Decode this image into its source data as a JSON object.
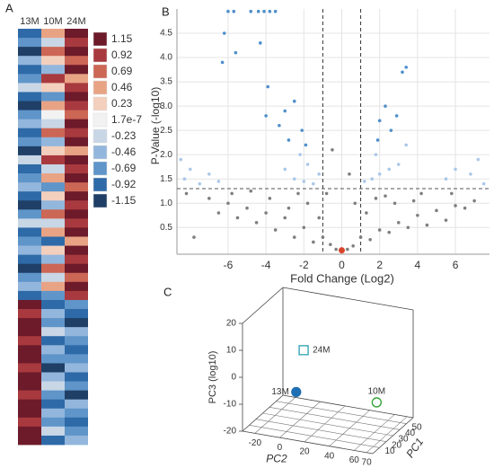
{
  "chart_data": [
    {
      "type": "heatmap",
      "panel": "A",
      "columns": [
        "13M",
        "10M",
        "24M"
      ],
      "legend": [
        {
          "value": 1.15,
          "color": "#6d1a2a"
        },
        {
          "value": 0.92,
          "color": "#a83a3f"
        },
        {
          "value": 0.69,
          "color": "#cc6655"
        },
        {
          "value": 0.46,
          "color": "#e8a385"
        },
        {
          "value": 0.23,
          "color": "#f3cfbd"
        },
        {
          "value": 1.7e-07,
          "color": "#f2f2f2"
        },
        {
          "value": -0.23,
          "color": "#c8d6e6"
        },
        {
          "value": -0.46,
          "color": "#93b6dc"
        },
        {
          "value": -0.69,
          "color": "#5f95c9"
        },
        {
          "value": -0.92,
          "color": "#2e6aa8"
        },
        {
          "value": -1.15,
          "color": "#1f3f66"
        }
      ],
      "rows": [
        [
          -0.92,
          0.46,
          1.15
        ],
        [
          -0.69,
          -0.23,
          0.92
        ],
        [
          -1.15,
          0.69,
          1.15
        ],
        [
          -0.46,
          0.23,
          0.69
        ],
        [
          -0.92,
          -0.46,
          1.15
        ],
        [
          -0.69,
          0.92,
          0.46
        ],
        [
          -0.23,
          0.23,
          0.92
        ],
        [
          -0.92,
          -0.69,
          1.15
        ],
        [
          -1.15,
          0.46,
          0.92
        ],
        [
          -0.69,
          1.7e-07,
          0.69
        ],
        [
          -0.46,
          -0.23,
          1.15
        ],
        [
          -0.92,
          0.69,
          0.92
        ],
        [
          -0.69,
          -0.46,
          1.15
        ],
        [
          -1.15,
          0.23,
          0.46
        ],
        [
          -0.23,
          0.92,
          1.15
        ],
        [
          -0.92,
          -0.23,
          0.92
        ],
        [
          -0.69,
          0.46,
          1.15
        ],
        [
          -0.46,
          -0.69,
          0.69
        ],
        [
          -0.92,
          0.23,
          1.15
        ],
        [
          -1.15,
          -0.46,
          0.92
        ],
        [
          -0.69,
          0.69,
          1.15
        ],
        [
          -0.23,
          -0.23,
          0.92
        ],
        [
          -0.92,
          0.46,
          1.15
        ],
        [
          -0.69,
          -0.92,
          0.46
        ],
        [
          -0.46,
          0.23,
          1.15
        ],
        [
          -0.92,
          -0.46,
          0.92
        ],
        [
          -1.15,
          0.69,
          1.15
        ],
        [
          -0.69,
          -0.23,
          0.69
        ],
        [
          -0.46,
          0.46,
          1.15
        ],
        [
          -0.92,
          -0.69,
          0.92
        ],
        [
          1.15,
          -0.92,
          -0.69
        ],
        [
          0.92,
          -0.46,
          -0.92
        ],
        [
          1.15,
          -0.69,
          -1.15
        ],
        [
          1.15,
          -0.23,
          -0.46
        ],
        [
          0.92,
          -0.92,
          -0.69
        ],
        [
          1.15,
          -0.46,
          -0.92
        ],
        [
          1.15,
          -0.69,
          -0.69
        ],
        [
          0.92,
          -1.15,
          -0.46
        ],
        [
          1.15,
          -0.46,
          -0.92
        ],
        [
          1.15,
          -0.23,
          -0.69
        ],
        [
          0.92,
          -0.69,
          -1.15
        ],
        [
          1.15,
          -0.92,
          -0.46
        ],
        [
          1.15,
          -0.46,
          -0.69
        ],
        [
          0.92,
          -0.69,
          -0.92
        ],
        [
          1.15,
          -0.23,
          -0.69
        ],
        [
          1.15,
          -0.92,
          -0.46
        ]
      ]
    },
    {
      "type": "scatter",
      "panel": "B",
      "xlabel": "Fold Change (Log2)",
      "ylabel": "P-Value (-log10)",
      "xlim": [
        -8.7,
        7.8
      ],
      "ylim": [
        -0.05,
        5.0
      ],
      "xticks": [
        -6,
        -4,
        -2,
        0,
        2,
        4,
        6
      ],
      "yticks": [
        0.5,
        {
          "value": 1,
          "label": "1.0"
        },
        1.5,
        {
          "value": 2,
          "label": "2.0"
        },
        2.5,
        {
          "value": 3,
          "label": "3.0"
        },
        3.5,
        {
          "value": 4,
          "label": "4.0"
        },
        4.5
      ],
      "grid": true,
      "vlines": [
        -1,
        1
      ],
      "hline": 1.3,
      "series": [
        {
          "color": "#7f7f7f",
          "x": [
            -0.3,
            0.3,
            -0.6,
            0.6,
            -1,
            1,
            -1.5,
            1.5,
            -2,
            2,
            -2.5,
            2.5,
            -3,
            3,
            -3.5,
            3.5,
            -4,
            4,
            -4.5,
            4.5,
            -5,
            5,
            -5.5,
            5.5,
            -6,
            6,
            -6.5,
            6.5,
            -7,
            7,
            -1.2,
            1.3,
            -1.8,
            1.8,
            -2.3,
            2.3,
            -7.8,
            -8.2,
            -0.8,
            0.7,
            -0.5,
            0.4,
            -4.8,
            4.2,
            -2.8,
            2.8,
            -3.8,
            3.8,
            -5.8,
            5.8
          ],
          "y": [
            0.05,
            0.05,
            0.15,
            0.12,
            0.3,
            0.3,
            0.2,
            0.25,
            0.5,
            0.45,
            0.3,
            0.4,
            0.7,
            0.6,
            0.45,
            0.5,
            0.8,
            0.75,
            0.6,
            0.55,
            0.9,
            0.85,
            0.7,
            0.65,
            1.0,
            0.95,
            0.8,
            0.9,
            1.1,
            1.05,
            0.7,
            0.8,
            1.0,
            1.1,
            1.2,
            1.15,
            0.3,
            1.2,
            1.2,
            1.0,
            2.1,
            1.6,
            1.25,
            1.2,
            0.9,
            1.0,
            1.1,
            1.05,
            1.2,
            1.2
          ]
        },
        {
          "color": "#a9c8e8",
          "x": [
            -8.5,
            -8.3,
            -8,
            -7.5,
            -7,
            -6.5,
            -2.5,
            -2,
            -1.5,
            -3,
            -1.2,
            1.2,
            1.6,
            2,
            2.5,
            3,
            5.5,
            6,
            6.8,
            7.2,
            7.5,
            -2.2,
            -1.8,
            1.8,
            3.4
          ],
          "y": [
            1.9,
            1.5,
            1.7,
            1.4,
            1.6,
            1.45,
            1.5,
            1.45,
            1.4,
            1.7,
            1.6,
            1.45,
            1.5,
            1.6,
            1.7,
            1.8,
            1.5,
            1.7,
            1.6,
            1.9,
            1.4,
            2.0,
            1.8,
            2.0,
            2.2
          ]
        },
        {
          "color": "#4f8fcc",
          "x": [
            -6,
            -5.7,
            -4.8,
            -4.4,
            -4.1,
            -3.8,
            -3.5,
            -6.2,
            -5.6,
            -6.3,
            -4.3,
            -3.9,
            -3,
            -2.5,
            -2.1,
            -1.9,
            -3.3,
            -2.8,
            -4,
            2,
            2.3,
            2.9,
            3.2,
            3.4,
            1.9,
            2.6
          ],
          "y": [
            4.95,
            4.95,
            4.95,
            4.95,
            4.95,
            4.95,
            4.95,
            4.5,
            4.1,
            3.9,
            4.3,
            3.4,
            2.9,
            3.1,
            2.5,
            2.2,
            2.6,
            2.3,
            2.8,
            2.7,
            3.0,
            2.8,
            3.7,
            3.8,
            2.3,
            2.5
          ]
        },
        {
          "color": "#d9452b",
          "x": [
            0
          ],
          "y": [
            0.03
          ]
        }
      ]
    },
    {
      "type": "scatter3d",
      "panel": "C",
      "xlabel": "PC1",
      "ylabel": "PC2",
      "zlabel": "PC3 (log10)",
      "pc1lim": [
        0,
        60
      ],
      "pc1ticks": [
        10,
        20,
        30,
        40,
        50
      ],
      "pc2lim": [
        -30,
        75
      ],
      "pc2ticks": [
        -20,
        0,
        20,
        40,
        60,
        70
      ],
      "zlim": [
        -20,
        20
      ],
      "zticks": [
        -20,
        -10,
        0,
        10,
        20
      ],
      "points": [
        {
          "name": "13M",
          "pc1": 30,
          "pc2": -3,
          "pc3": -10,
          "color": "#1f6fb4",
          "marker": "circle",
          "filled": true
        },
        {
          "name": "10M",
          "pc1": 50,
          "pc2": 51,
          "pc3": -14,
          "color": "#2ca02c",
          "marker": "circle",
          "filled": false
        },
        {
          "name": "24M",
          "pc1": 30,
          "pc2": 3,
          "pc3": 6,
          "color": "#2aa1b3",
          "marker": "square",
          "filled": false
        }
      ]
    }
  ]
}
